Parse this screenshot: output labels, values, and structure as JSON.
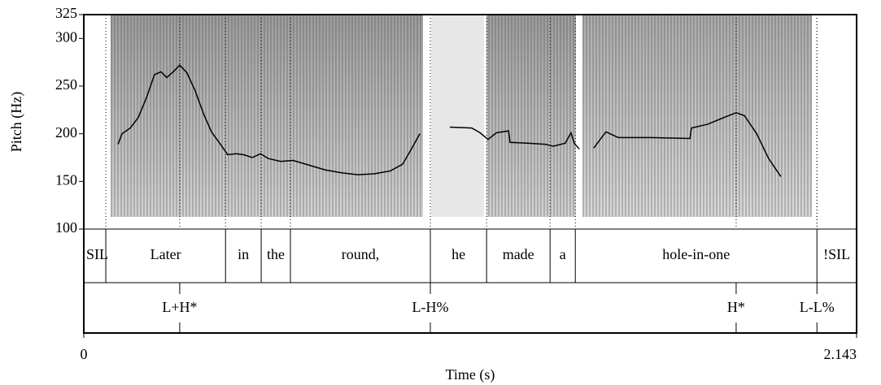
{
  "chart_data": {
    "type": "line",
    "ylabel": "Pitch (Hz)",
    "xlabel": "Time (s)",
    "xlim": [
      0,
      2.143
    ],
    "xticks": [
      0,
      2.143
    ],
    "ylim": [
      100,
      325
    ],
    "yticks": [
      100,
      150,
      200,
      250,
      300,
      325
    ],
    "color": "#000000",
    "x": [
      0.095,
      0.106,
      0.129,
      0.151,
      0.174,
      0.196,
      0.214,
      0.23,
      0.248,
      0.266,
      0.286,
      0.309,
      0.332,
      0.354,
      0.377,
      0.399,
      0.422,
      0.444,
      0.467,
      0.49,
      0.512,
      0.546,
      0.58,
      0.625,
      0.67,
      0.715,
      0.76,
      0.805,
      0.85,
      0.884,
      0.907,
      0.932,
      null,
      1.015,
      1.076,
      1.099,
      1.121,
      1.144,
      1.178,
      1.182,
      1.234,
      1.279,
      1.302,
      1.335,
      1.351,
      1.36,
      1.374,
      null,
      1.414,
      1.448,
      1.482,
      1.572,
      1.681,
      1.685,
      1.73,
      1.775,
      1.809,
      1.832,
      1.866,
      1.899,
      1.933
    ],
    "values": [
      189,
      200,
      206,
      217,
      238,
      262,
      265,
      259,
      265,
      272,
      264,
      245,
      221,
      202,
      190,
      178,
      179,
      178,
      175,
      179,
      174,
      171,
      172,
      167,
      162,
      159,
      157,
      158,
      161,
      168,
      183,
      200,
      null,
      207,
      206,
      201,
      194,
      201,
      203,
      191,
      190,
      189,
      187,
      190,
      201,
      190,
      184,
      null,
      185,
      202,
      196,
      196,
      195,
      206,
      210,
      217,
      222,
      219,
      200,
      174,
      155
    ],
    "words": {
      "boundaries": [
        0.061,
        0.393,
        0.492,
        0.573,
        0.961,
        1.117,
        1.293,
        1.363,
        2.033
      ],
      "labels": [
        "!SIL",
        "Later",
        "in",
        "the",
        "round,",
        "he",
        "made",
        "a",
        "hole-in-one",
        "!SIL"
      ]
    },
    "tones": {
      "times": [
        0.266,
        0.961,
        1.809,
        2.033
      ],
      "labels": [
        "L+H*",
        "L-H%",
        "H*",
        "L-L%"
      ]
    }
  }
}
